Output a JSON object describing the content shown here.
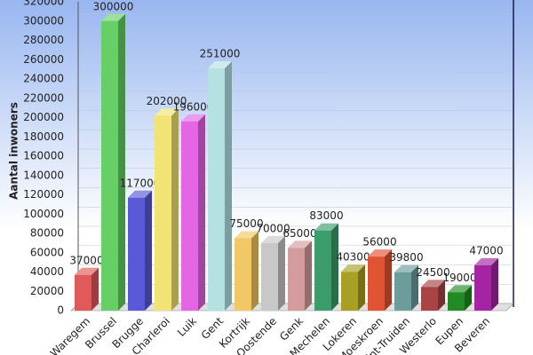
{
  "chart_data": {
    "type": "bar3d",
    "y_label": "Aantal inwoners",
    "categories": [
      "Waregem",
      "Brussel",
      "Brugge",
      "Charleroi",
      "Luik",
      "Gent",
      "Kortrijk",
      "Oostende",
      "Genk",
      "Mechelen",
      "Lokeren",
      "Moeskroen",
      "Sint-Truiden",
      "Westerlo",
      "Eupen",
      "Beveren"
    ],
    "values": [
      37000,
      300000,
      117000,
      202000,
      196000,
      251000,
      75000,
      70000,
      65000,
      83000,
      40300,
      56000,
      39800,
      24500,
      19000,
      47000
    ],
    "colors": [
      "#e05a5a",
      "#66d066",
      "#5a5ad8",
      "#f2e474",
      "#e466e4",
      "#b4e2e2",
      "#f0c864",
      "#c8c8c8",
      "#d49c9c",
      "#3c9c6c",
      "#a8a024",
      "#e05434",
      "#6c9c9c",
      "#a84444",
      "#228a22",
      "#a424a4"
    ],
    "ylim": [
      0,
      320000
    ],
    "yticks": [
      0,
      20000,
      40000,
      60000,
      80000,
      100000,
      120000,
      140000,
      160000,
      180000,
      200000,
      220000,
      240000,
      260000,
      280000,
      300000,
      320000
    ],
    "grid": true
  }
}
